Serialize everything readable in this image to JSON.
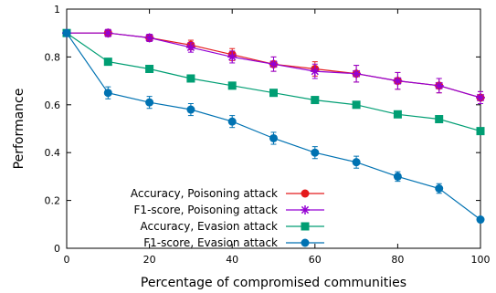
{
  "chart_data": {
    "type": "line",
    "xlabel": "Percentage of compromised communities",
    "ylabel": "Performance",
    "xlim": [
      0,
      100
    ],
    "ylim": [
      0,
      1
    ],
    "x_ticks": [
      0,
      20,
      40,
      60,
      80,
      100
    ],
    "y_ticks": [
      0,
      0.2,
      0.4,
      0.6,
      0.8,
      1
    ],
    "y_tick_labels": [
      "0",
      "0.2",
      "0.4",
      "0.6",
      "0.8",
      "1"
    ],
    "grid": false,
    "legend_position": "bottom-left",
    "x": [
      0,
      10,
      20,
      30,
      40,
      50,
      60,
      70,
      80,
      90,
      100
    ],
    "series": [
      {
        "name": "Accuracy, Poisoning attack",
        "color": "#e41a1c",
        "marker": "circle",
        "values": [
          0.9,
          0.9,
          0.88,
          0.85,
          0.81,
          0.77,
          0.75,
          0.73,
          0.7,
          0.68,
          0.63
        ],
        "errors": [
          0.01,
          0.015,
          0.015,
          0.02,
          0.025,
          0.03,
          0.03,
          0.035,
          0.035,
          0.03,
          0.025
        ]
      },
      {
        "name": "F1-score, Poisoning attack",
        "color": "#9400d3",
        "marker": "star",
        "values": [
          0.9,
          0.9,
          0.88,
          0.84,
          0.8,
          0.77,
          0.74,
          0.73,
          0.7,
          0.68,
          0.63
        ],
        "errors": [
          0.01,
          0.015,
          0.015,
          0.02,
          0.025,
          0.03,
          0.03,
          0.035,
          0.035,
          0.03,
          0.025
        ]
      },
      {
        "name": "Accuracy, Evasion attack",
        "color": "#009e73",
        "marker": "square",
        "values": [
          0.9,
          0.78,
          0.75,
          0.71,
          0.68,
          0.65,
          0.62,
          0.6,
          0.56,
          0.54,
          0.49
        ],
        "errors": [
          0,
          0,
          0,
          0,
          0,
          0,
          0,
          0,
          0,
          0,
          0
        ]
      },
      {
        "name": "F1-score, Evasion attack",
        "color": "#0072b2",
        "marker": "circle",
        "values": [
          0.9,
          0.65,
          0.61,
          0.58,
          0.53,
          0.46,
          0.4,
          0.36,
          0.3,
          0.25,
          0.12
        ],
        "errors": [
          0.01,
          0.025,
          0.025,
          0.025,
          0.025,
          0.025,
          0.025,
          0.025,
          0.02,
          0.02,
          0.01
        ]
      }
    ]
  }
}
